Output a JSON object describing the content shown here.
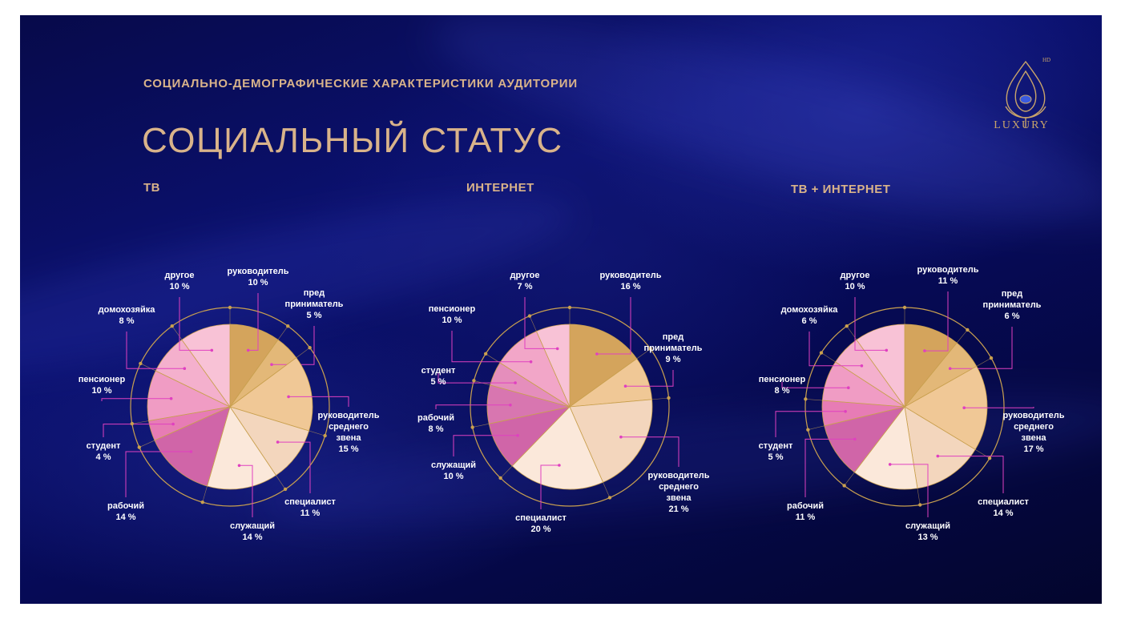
{
  "header": {
    "subtitle": "СОЦИАЛЬНО-ДЕМОГРАФИЧЕСКИЕ ХАРАКТЕРИСТИКИ АУДИТОРИИ",
    "title": "СОЦИАЛЬНЫЙ СТАТУС"
  },
  "logo": {
    "word": "LUXURY",
    "badge": "HD"
  },
  "colors": {
    "background": "#0a0f6b",
    "accent": "#d9b38a",
    "ring": "#c9a04f",
    "leader": "#e040c0"
  },
  "chart_data": [
    {
      "type": "pie",
      "title": "ТВ",
      "slices": [
        {
          "label": [
            "руководитель"
          ],
          "value": 10,
          "color": "#d4a45c"
        },
        {
          "label": [
            "пред",
            "приниматель"
          ],
          "value": 5,
          "color": "#e3b878"
        },
        {
          "label": [
            "руководитель",
            "среднего",
            "звена"
          ],
          "value": 15,
          "color": "#f0c896"
        },
        {
          "label": [
            "специалист"
          ],
          "value": 11,
          "color": "#f3d6bd"
        },
        {
          "label": [
            "служащий"
          ],
          "value": 14,
          "color": "#fbe8da"
        },
        {
          "label": [
            "рабочий"
          ],
          "value": 14,
          "color": "#d065a8"
        },
        {
          "label": [
            "студент"
          ],
          "value": 4,
          "color": "#e77cb5"
        },
        {
          "label": [
            "пенсионер"
          ],
          "value": 10,
          "color": "#f09cc4"
        },
        {
          "label": [
            "домохозяйка"
          ],
          "value": 8,
          "color": "#f4b0cd"
        },
        {
          "label": [
            "другое"
          ],
          "value": 10,
          "color": "#f8c2d6"
        }
      ]
    },
    {
      "type": "pie",
      "title": "ИНТЕРНЕТ",
      "slices": [
        {
          "label": [
            "руководитель"
          ],
          "value": 16,
          "color": "#d4a45c"
        },
        {
          "label": [
            "пред",
            "приниматель"
          ],
          "value": 9,
          "color": "#f0c896"
        },
        {
          "label": [
            "руководитель",
            "среднего",
            "звена"
          ],
          "value": 21,
          "color": "#f3d6bd"
        },
        {
          "label": [
            "специалист"
          ],
          "value": 20,
          "color": "#fbe8da"
        },
        {
          "label": [
            "служащий"
          ],
          "value": 10,
          "color": "#d065a8"
        },
        {
          "label": [
            "рабочий"
          ],
          "value": 8,
          "color": "#d876b0"
        },
        {
          "label": [
            "студент"
          ],
          "value": 5,
          "color": "#e58ebc"
        },
        {
          "label": [
            "пенсионер"
          ],
          "value": 10,
          "color": "#f2a6c8"
        },
        {
          "label": [
            "другое"
          ],
          "value": 7,
          "color": "#f8c2d6"
        }
      ]
    },
    {
      "type": "pie",
      "title": "ТВ + ИНТЕРНЕТ",
      "slices": [
        {
          "label": [
            "руководитель"
          ],
          "value": 11,
          "color": "#d4a45c"
        },
        {
          "label": [
            "пред",
            "приниматель"
          ],
          "value": 6,
          "color": "#e3b878"
        },
        {
          "label": [
            "руководитель",
            "среднего",
            "звена"
          ],
          "value": 17,
          "color": "#f0c896"
        },
        {
          "label": [
            "специалист"
          ],
          "value": 14,
          "color": "#f3d6bd"
        },
        {
          "label": [
            "служащий"
          ],
          "value": 13,
          "color": "#fbe8da"
        },
        {
          "label": [
            "рабочий"
          ],
          "value": 11,
          "color": "#d065a8"
        },
        {
          "label": [
            "студент"
          ],
          "value": 5,
          "color": "#e77cb5"
        },
        {
          "label": [
            "пенсионер"
          ],
          "value": 8,
          "color": "#f09cc4"
        },
        {
          "label": [
            "домохозяйка"
          ],
          "value": 6,
          "color": "#f4b0cd"
        },
        {
          "label": [
            "другое"
          ],
          "value": 10,
          "color": "#f8c2d6"
        }
      ]
    }
  ]
}
